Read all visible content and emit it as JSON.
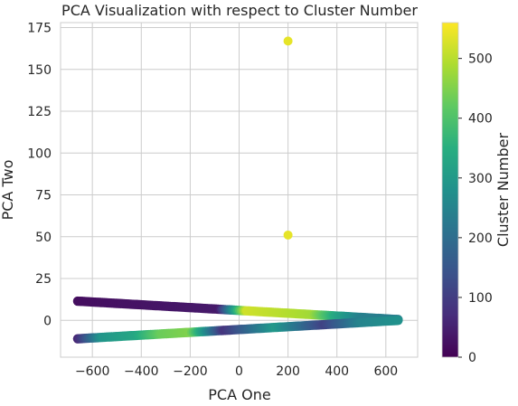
{
  "chart_data": {
    "type": "scatter",
    "title": "PCA Visualization with respect to Cluster Number",
    "xlabel": "PCA One",
    "ylabel": "PCA Two",
    "xlim": [
      -730,
      730
    ],
    "ylim": [
      -22,
      178
    ],
    "xticks": [
      -600,
      -400,
      -200,
      0,
      200,
      400,
      600
    ],
    "yticks": [
      0,
      25,
      50,
      75,
      100,
      125,
      150,
      175
    ],
    "grid": true,
    "colorbar": {
      "label": "Cluster Number",
      "colormap": "viridis",
      "range": [
        0,
        560
      ],
      "ticks": [
        0,
        100,
        200,
        300,
        400,
        500
      ]
    },
    "bands": [
      {
        "x_start": -660,
        "x_end": 650,
        "y_start": 11.5,
        "y_end": 0.5,
        "color_stops": [
          {
            "x": -660,
            "cluster": 20
          },
          {
            "x": -80,
            "cluster": 40
          },
          {
            "x": 30,
            "cluster": 520
          },
          {
            "x": 180,
            "cluster": 500
          },
          {
            "x": 300,
            "cluster": 480
          },
          {
            "x": 400,
            "cluster": 330
          },
          {
            "x": 500,
            "cluster": 240
          },
          {
            "x": 650,
            "cluster": 230
          }
        ]
      },
      {
        "x_start": -660,
        "x_end": 650,
        "y_start": -11,
        "y_end": 0,
        "color_stops": [
          {
            "x": -660,
            "cluster": 60
          },
          {
            "x": -560,
            "cluster": 290
          },
          {
            "x": -420,
            "cluster": 330
          },
          {
            "x": -320,
            "cluster": 430
          },
          {
            "x": -200,
            "cluster": 450
          },
          {
            "x": -60,
            "cluster": 80
          },
          {
            "x": 150,
            "cluster": 300
          },
          {
            "x": 350,
            "cluster": 110
          },
          {
            "x": 500,
            "cluster": 250
          },
          {
            "x": 650,
            "cluster": 280
          }
        ]
      }
    ],
    "points": [
      {
        "x": 200,
        "y": 167,
        "cluster": 540
      },
      {
        "x": 200,
        "y": 51,
        "cluster": 540
      }
    ]
  }
}
